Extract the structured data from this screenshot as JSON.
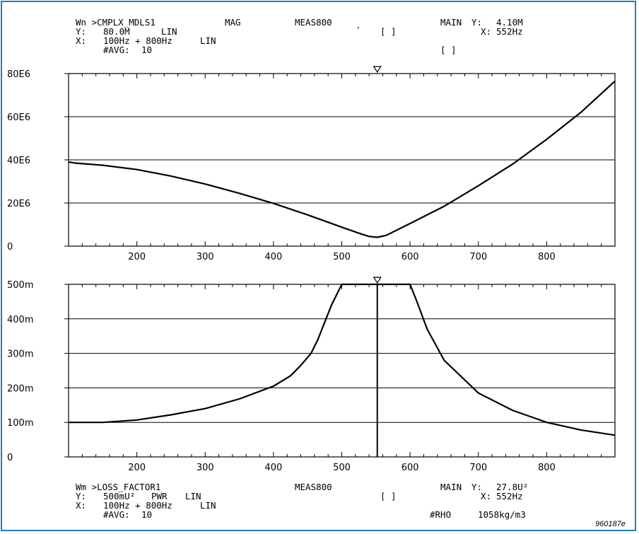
{
  "header": {
    "line1_a": "Wn >CMPLX_MDLS1",
    "line1_b": "MAG",
    "line1_c": "MEAS800",
    "line1_dot": ".",
    "line1_main": "MAIN",
    "line1_y_label": "Y:",
    "line1_y_value": "4.10M",
    "line2_a": "Y:",
    "line2_b": "80.0M",
    "line2_c": "LIN",
    "line2_bracket": "[ ]",
    "line2_x_label": "X:",
    "line2_x_value": "552Hz",
    "line3_a": "X:",
    "line3_b": "100Hz + 800Hz",
    "line3_c": "LIN",
    "line4_a": "#AVG:",
    "line4_b": "10",
    "line4_bracket": "[ ]"
  },
  "footer": {
    "line1_a": "Wm >LOSS_FACTOR1",
    "line1_c": "MEAS800",
    "line1_main": "MAIN",
    "line1_y_label": "Y:",
    "line1_y_value": "27.8U²",
    "line2_a": "Y:",
    "line2_b": "500mU²",
    "line2_c": "PWR",
    "line2_d": "LIN",
    "line2_bracket": "[ ]",
    "line2_x_label": "X:",
    "line2_x_value": "552Hz",
    "line3_a": "X:",
    "line3_b": "100Hz + 800Hz",
    "line3_c": "LIN",
    "line4_a": "#AVG:",
    "line4_b": "10",
    "line4_rho_label": "#RHO",
    "line4_rho_value": "1058kg/m3",
    "figure_ref": "960187e"
  },
  "colors": {
    "frame": "#1f7fc4",
    "trace": "#000000",
    "grid": "#000000"
  },
  "chart_data": [
    {
      "type": "line",
      "title": "",
      "xlabel": "",
      "ylabel": "",
      "xlim": [
        100,
        900
      ],
      "ylim": [
        0,
        80000000
      ],
      "grid": true,
      "marker_x": 552,
      "x_ticks": [
        200,
        300,
        400,
        500,
        600,
        700,
        800
      ],
      "y_ticks": [
        0,
        20000000,
        40000000,
        60000000,
        80000000
      ],
      "y_tick_labels": [
        "0",
        "20E6",
        "40E6",
        "60E6",
        "80E6"
      ],
      "series": [
        {
          "x": [
            100,
            110,
            150,
            200,
            250,
            300,
            350,
            400,
            450,
            500,
            525,
            540,
            552,
            565,
            600,
            650,
            700,
            750,
            800,
            850,
            900
          ],
          "values": [
            39000000,
            38500000,
            37500000,
            35500000,
            32500000,
            28800000,
            24500000,
            19800000,
            14500000,
            8800000,
            6000000,
            4500000,
            4100000,
            5000000,
            10500000,
            18500000,
            28000000,
            38000000,
            49500000,
            62000000,
            76500000
          ]
        }
      ]
    },
    {
      "type": "line",
      "title": "",
      "xlabel": "",
      "ylabel": "",
      "xlim": [
        100,
        900
      ],
      "ylim": [
        0,
        0.5
      ],
      "grid": true,
      "marker_x": 552,
      "x_ticks": [
        200,
        300,
        400,
        500,
        600,
        700,
        800
      ],
      "y_ticks": [
        0,
        0.1,
        0.2,
        0.3,
        0.4,
        0.5
      ],
      "y_tick_labels": [
        "0",
        "100m",
        "200m",
        "300m",
        "400m",
        "500m"
      ],
      "series": [
        {
          "x": [
            100,
            120,
            150,
            200,
            250,
            300,
            350,
            400,
            425,
            440,
            455,
            465,
            475,
            485,
            495,
            500,
            510,
            552,
            600,
            610,
            625,
            650,
            700,
            750,
            800,
            850,
            900
          ],
          "values": [
            0.1,
            0.1,
            0.1,
            0.107,
            0.122,
            0.14,
            0.168,
            0.205,
            0.235,
            0.265,
            0.3,
            0.34,
            0.39,
            0.44,
            0.48,
            0.5,
            0.5,
            0.5,
            0.5,
            0.45,
            0.37,
            0.28,
            0.185,
            0.135,
            0.1,
            0.078,
            0.063
          ]
        }
      ]
    }
  ]
}
